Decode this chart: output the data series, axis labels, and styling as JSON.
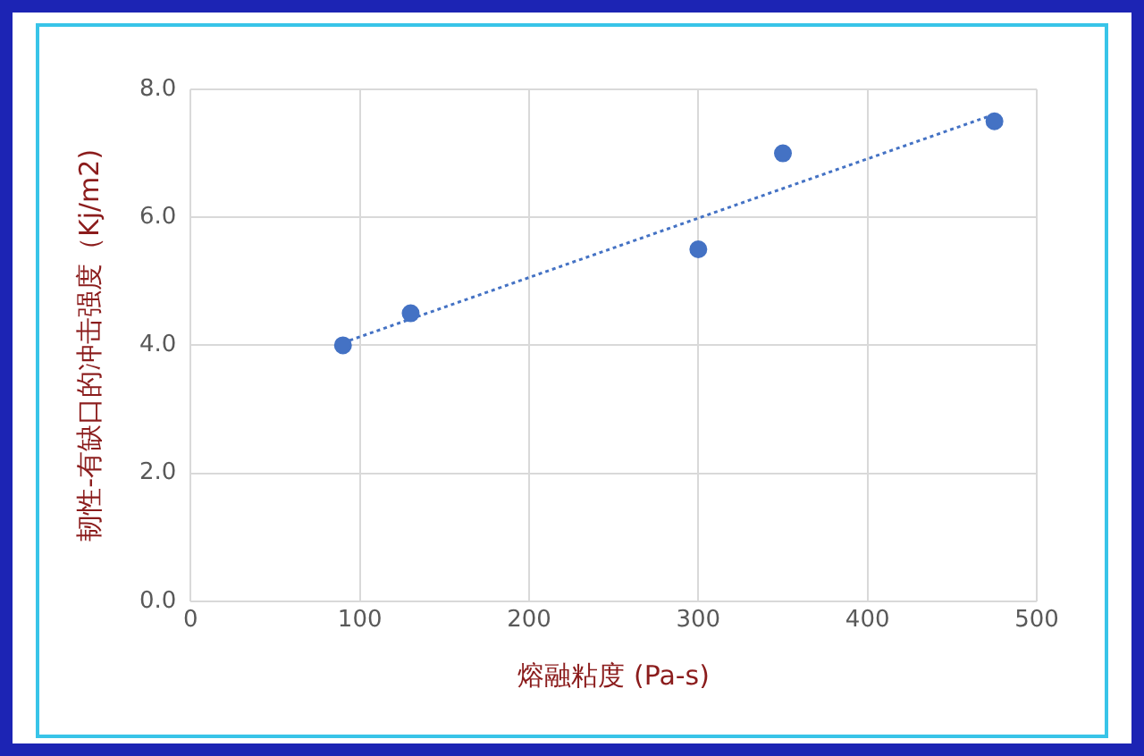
{
  "chart_data": {
    "type": "scatter",
    "xlabel": "熔融粘度 (Pa-s)",
    "ylabel": "韧性-有缺口的冲击强度（Kj/m2)",
    "xlim": [
      0,
      500
    ],
    "xticks": [
      0,
      100,
      200,
      300,
      400,
      500
    ],
    "ylim": [
      0,
      8
    ],
    "yticks": [
      {
        "value": 0,
        "label": "0.0"
      },
      {
        "value": 2,
        "label": "2.0"
      },
      {
        "value": 4,
        "label": "4.0"
      },
      {
        "value": 6,
        "label": "6.0"
      },
      {
        "value": 8,
        "label": "8.0"
      }
    ],
    "grid": true,
    "series": [
      {
        "type": "scatter",
        "color": "#4472c4",
        "marker": "circle",
        "x": [
          90,
          130,
          300,
          350,
          475
        ],
        "values": [
          4.0,
          4.5,
          5.5,
          7.0,
          7.5
        ]
      },
      {
        "type": "line",
        "color": "#4472c4",
        "marker": "none",
        "line_style": "dotted",
        "x": [
          90,
          475
        ],
        "values": [
          4.04,
          7.61
        ]
      }
    ]
  }
}
